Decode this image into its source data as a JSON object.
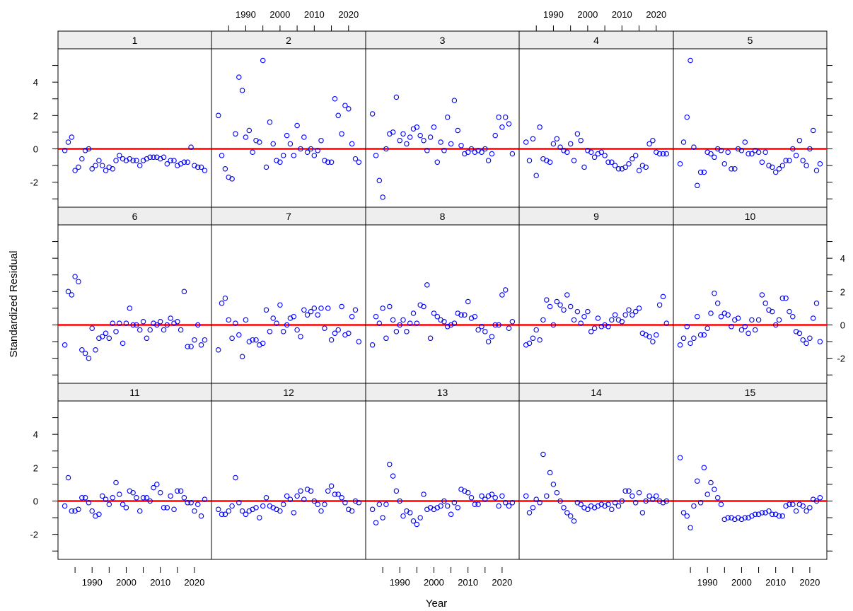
{
  "chart_data": {
    "type": "scatter",
    "layout": "lattice 5x3",
    "xlabel": "Year",
    "ylabel": "Standardized Residual",
    "xlim": [
      1980,
      2025
    ],
    "ylim": [
      -3.5,
      6.0
    ],
    "x_ticks": [
      1990,
      2000,
      2010,
      2020
    ],
    "y_ticks": [
      -2,
      0,
      2,
      4
    ],
    "reference_line": {
      "y": 0,
      "color": "#ff0000"
    },
    "point_color": "#0000ff",
    "x_years": [
      1982,
      1983,
      1984,
      1985,
      1986,
      1987,
      1988,
      1989,
      1990,
      1991,
      1992,
      1993,
      1994,
      1995,
      1996,
      1997,
      1998,
      1999,
      2000,
      2001,
      2002,
      2003,
      2004,
      2005,
      2006,
      2007,
      2008,
      2009,
      2010,
      2011,
      2012,
      2013,
      2014,
      2015,
      2016,
      2017,
      2018,
      2019,
      2020,
      2021,
      2022,
      2023
    ],
    "panels": [
      {
        "label": "1",
        "values": [
          -0.1,
          0.4,
          0.7,
          -1.3,
          -1.1,
          -0.6,
          -0.1,
          0.0,
          -1.2,
          -1.0,
          -0.7,
          -1.0,
          -1.3,
          -1.1,
          -1.2,
          -0.7,
          -0.4,
          -0.6,
          -0.7,
          -0.6,
          -0.7,
          -0.7,
          -1.0,
          -0.7,
          -0.6,
          -0.5,
          -0.5,
          -0.5,
          -0.6,
          -0.5,
          -0.9,
          -0.7,
          -0.7,
          -1.0,
          -0.9,
          -0.8,
          -0.8,
          0.1,
          -1.0,
          -1.1,
          -1.1,
          -1.3
        ]
      },
      {
        "label": "2",
        "values": [
          2.0,
          -0.4,
          -1.2,
          -1.7,
          -1.8,
          0.9,
          4.3,
          3.5,
          0.7,
          1.1,
          -0.2,
          0.5,
          0.4,
          5.3,
          -1.1,
          1.6,
          0.3,
          -0.7,
          -0.8,
          -0.4,
          0.8,
          0.3,
          -0.4,
          1.4,
          0.0,
          0.7,
          -0.2,
          0.0,
          -0.4,
          -0.1,
          0.5,
          -0.7,
          -0.8,
          -0.8,
          3.0,
          2.0,
          0.9,
          2.6,
          2.4,
          0.3,
          -0.6,
          -0.8
        ]
      },
      {
        "label": "3",
        "values": [
          2.1,
          -0.4,
          -1.9,
          -2.9,
          0.0,
          0.9,
          1.0,
          3.1,
          0.5,
          0.9,
          0.3,
          0.7,
          1.2,
          1.3,
          0.8,
          0.5,
          -0.1,
          0.7,
          1.3,
          -0.8,
          0.4,
          -0.1,
          1.9,
          0.3,
          2.9,
          1.1,
          0.2,
          -0.3,
          -0.2,
          0.0,
          -0.2,
          -0.1,
          -0.2,
          0.0,
          -0.7,
          -0.3,
          0.8,
          1.9,
          1.3,
          1.9,
          1.5,
          -0.3
        ]
      },
      {
        "label": "4",
        "values": [
          0.4,
          -0.7,
          0.6,
          -1.6,
          1.3,
          -0.6,
          -0.7,
          -0.8,
          0.3,
          0.6,
          0.1,
          -0.1,
          -0.2,
          0.3,
          -0.7,
          0.9,
          0.5,
          -1.1,
          -0.1,
          -0.2,
          -0.5,
          -0.3,
          -0.2,
          -0.4,
          -0.8,
          -0.8,
          -1.0,
          -1.2,
          -1.2,
          -1.1,
          -0.9,
          -0.6,
          -0.4,
          -1.3,
          -1.0,
          -1.1,
          0.3,
          0.5,
          -0.2,
          -0.3,
          -0.3,
          -0.3
        ]
      },
      {
        "label": "5",
        "values": [
          -0.9,
          0.4,
          1.9,
          5.3,
          0.1,
          -2.2,
          -1.4,
          -1.4,
          -0.2,
          -0.3,
          -0.5,
          0.0,
          -0.1,
          -0.9,
          -0.2,
          -1.2,
          -1.2,
          0.0,
          -0.1,
          0.4,
          -0.3,
          -0.3,
          -0.1,
          -0.2,
          -0.8,
          -0.2,
          -1.0,
          -1.1,
          -1.4,
          -1.2,
          -1.0,
          -0.7,
          -0.7,
          0.0,
          -0.4,
          0.5,
          -0.7,
          -1.0,
          0.0,
          1.1,
          -1.3,
          -0.9
        ]
      },
      {
        "label": "6",
        "values": [
          -1.2,
          2.0,
          1.8,
          2.9,
          2.6,
          -1.5,
          -1.7,
          -2.0,
          -0.2,
          -1.5,
          -0.8,
          -0.7,
          -0.5,
          -0.8,
          0.1,
          -0.4,
          0.1,
          -1.1,
          0.1,
          1.0,
          0.0,
          0.0,
          -0.3,
          0.2,
          -0.8,
          -0.3,
          0.1,
          0.0,
          0.2,
          -0.3,
          0.0,
          0.4,
          0.1,
          0.2,
          -0.3,
          2.0,
          -1.3,
          -1.3,
          -0.9,
          0.0,
          -1.2,
          -0.9
        ]
      },
      {
        "label": "7",
        "values": [
          -1.5,
          1.3,
          1.6,
          0.3,
          -0.8,
          0.1,
          -0.6,
          -1.9,
          0.3,
          -1.0,
          -0.9,
          -0.9,
          -1.2,
          -1.1,
          0.9,
          -0.4,
          0.4,
          0.1,
          1.2,
          -0.4,
          0.0,
          0.4,
          0.5,
          -0.3,
          -0.7,
          0.9,
          0.6,
          0.8,
          1.0,
          0.6,
          1.0,
          -0.2,
          1.0,
          -0.9,
          -0.5,
          -0.3,
          1.1,
          -0.6,
          -0.5,
          0.5,
          0.9,
          -1.0
        ]
      },
      {
        "label": "8",
        "values": [
          -1.2,
          0.5,
          0.1,
          1.0,
          -0.8,
          1.1,
          0.3,
          -0.4,
          0.0,
          0.3,
          -0.4,
          0.1,
          0.7,
          0.1,
          1.2,
          1.1,
          2.4,
          -0.8,
          0.7,
          0.5,
          0.3,
          0.2,
          -0.1,
          0.0,
          0.1,
          0.7,
          0.6,
          0.6,
          1.4,
          0.4,
          0.5,
          -0.3,
          -0.1,
          -0.4,
          -1.0,
          -0.7,
          0.0,
          0.0,
          1.8,
          2.1,
          -0.2,
          0.2
        ]
      },
      {
        "label": "9",
        "values": [
          -1.2,
          -1.1,
          -0.8,
          -0.3,
          -0.9,
          0.3,
          1.5,
          1.1,
          0.0,
          1.4,
          1.2,
          0.9,
          1.8,
          1.1,
          0.3,
          0.8,
          0.1,
          0.5,
          0.8,
          -0.4,
          -0.2,
          0.4,
          -0.1,
          0.0,
          -0.1,
          0.3,
          0.6,
          0.3,
          0.2,
          0.6,
          0.9,
          0.6,
          0.8,
          1.0,
          -0.5,
          -0.6,
          -0.7,
          -1.0,
          -0.6,
          1.2,
          1.7,
          0.1
        ]
      },
      {
        "label": "10",
        "values": [
          -1.2,
          -0.8,
          -0.1,
          -1.1,
          -0.8,
          0.5,
          -0.6,
          -0.6,
          -0.2,
          0.7,
          1.9,
          1.3,
          0.5,
          0.7,
          0.6,
          -0.1,
          0.3,
          0.4,
          -0.3,
          -0.1,
          -0.5,
          0.3,
          -0.3,
          0.3,
          1.8,
          1.3,
          0.9,
          0.8,
          0.0,
          0.3,
          1.6,
          1.6,
          0.8,
          0.5,
          -0.4,
          -0.5,
          -0.9,
          -1.1,
          -0.8,
          0.4,
          1.3,
          -1.0
        ]
      },
      {
        "label": "11",
        "values": [
          -0.3,
          1.4,
          -0.6,
          -0.6,
          -0.5,
          0.2,
          0.2,
          -0.1,
          -0.6,
          -0.9,
          -0.8,
          0.3,
          0.1,
          -0.2,
          0.2,
          1.1,
          0.4,
          -0.2,
          -0.4,
          0.6,
          0.5,
          0.2,
          -0.6,
          0.2,
          0.2,
          0.0,
          0.8,
          1.0,
          0.5,
          -0.4,
          -0.4,
          0.3,
          -0.5,
          0.6,
          0.6,
          0.2,
          -0.1,
          -0.1,
          -0.6,
          -0.2,
          -0.9,
          0.1
        ]
      },
      {
        "label": "12",
        "values": [
          -0.5,
          -0.8,
          -0.8,
          -0.6,
          -0.3,
          1.4,
          -0.1,
          -0.6,
          -0.8,
          -0.6,
          -0.5,
          -0.4,
          -1.0,
          -0.3,
          0.2,
          -0.3,
          -0.4,
          -0.5,
          -0.6,
          -0.2,
          0.3,
          0.1,
          -0.7,
          0.3,
          0.6,
          0.1,
          0.7,
          0.6,
          0.0,
          -0.2,
          -0.6,
          -0.2,
          0.6,
          0.9,
          0.4,
          0.4,
          0.2,
          -0.1,
          -0.5,
          -0.6,
          0.0,
          -0.1
        ]
      },
      {
        "label": "13",
        "values": [
          -0.5,
          -1.3,
          -0.2,
          -1.0,
          -0.2,
          2.2,
          1.5,
          0.6,
          0.0,
          -0.9,
          -0.6,
          -0.7,
          -1.2,
          -1.4,
          -1.0,
          0.4,
          -0.5,
          -0.4,
          -0.5,
          -0.4,
          -0.3,
          0.0,
          -0.3,
          -0.8,
          -0.1,
          -0.4,
          0.7,
          0.6,
          0.5,
          0.2,
          -0.2,
          -0.2,
          0.3,
          0.1,
          0.3,
          0.4,
          0.2,
          -0.3,
          0.3,
          -0.1,
          -0.3,
          -0.1
        ]
      },
      {
        "label": "14",
        "values": [
          0.3,
          -0.7,
          -0.4,
          0.1,
          -0.1,
          2.8,
          0.3,
          1.7,
          1.0,
          0.5,
          0.0,
          -0.4,
          -0.7,
          -0.9,
          -1.2,
          -0.1,
          -0.2,
          -0.4,
          -0.5,
          -0.3,
          -0.4,
          -0.3,
          -0.2,
          -0.3,
          -0.2,
          -0.5,
          -0.1,
          -0.3,
          0.0,
          0.6,
          0.6,
          0.3,
          -0.1,
          0.5,
          -0.7,
          0.0,
          0.3,
          0.1,
          0.3,
          0.0,
          -0.1,
          0.0
        ]
      },
      {
        "label": "15",
        "values": [
          2.6,
          -0.7,
          -0.9,
          -1.6,
          -0.3,
          1.2,
          -0.1,
          2.0,
          0.4,
          1.1,
          0.7,
          0.2,
          -0.2,
          -1.1,
          -1.0,
          -1.0,
          -1.1,
          -1.0,
          -1.1,
          -1.0,
          -1.0,
          -0.9,
          -0.8,
          -0.8,
          -0.7,
          -0.7,
          -0.6,
          -0.8,
          -0.8,
          -0.9,
          -0.9,
          -0.3,
          -0.2,
          -0.2,
          -0.6,
          -0.2,
          -0.3,
          -0.6,
          -0.4,
          0.1,
          0.0,
          0.2
        ]
      }
    ]
  }
}
